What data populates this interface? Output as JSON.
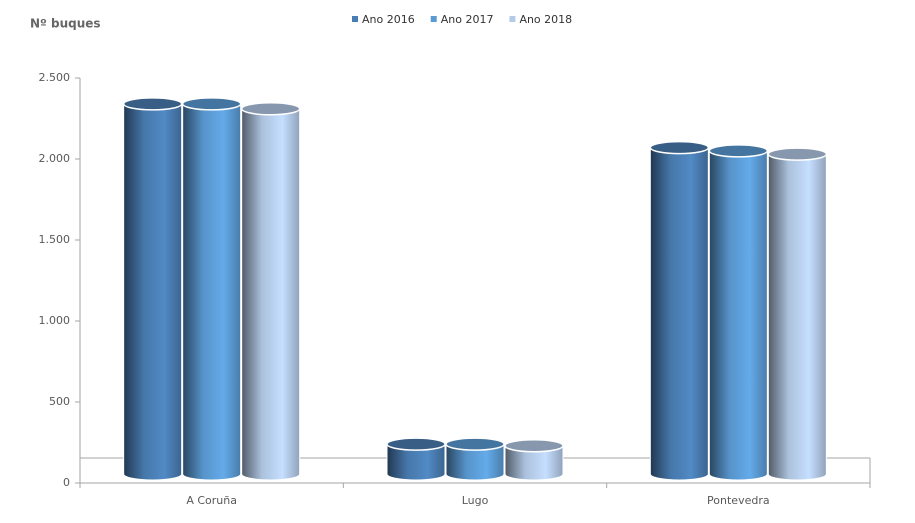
{
  "chart_data": {
    "type": "bar",
    "y_label": "Nº buques",
    "categories": [
      "A Coruña",
      "Lugo",
      "Pontevedra"
    ],
    "series": [
      {
        "name": "Ano 2016",
        "color": "#4a7db3",
        "values": [
          2340,
          240,
          2070
        ]
      },
      {
        "name": "Ano 2017",
        "color": "#5b9bd5",
        "values": [
          2340,
          240,
          2050
        ]
      },
      {
        "name": "Ano 2018",
        "color": "#b4cbe8",
        "values": [
          2310,
          230,
          2030
        ]
      }
    ],
    "ylim": [
      0,
      2500
    ],
    "yticks": [
      0,
      500,
      {
        "value": 1000,
        "label": "1.000"
      },
      {
        "value": 1500,
        "label": "1.500"
      },
      {
        "value": 2000,
        "label": "2.000"
      },
      {
        "value": 2500,
        "label": "2.500"
      }
    ],
    "legend": "top"
  }
}
